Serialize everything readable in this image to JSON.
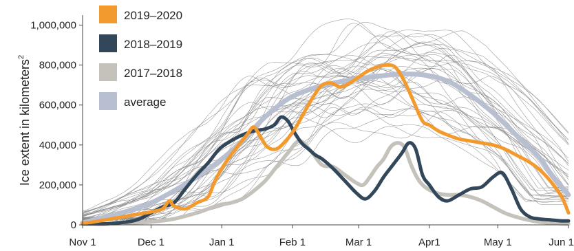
{
  "chart_data": {
    "type": "line",
    "ylabel": "Ice extent in kilometers",
    "ylabel_superscript": "2",
    "ylim": [
      0,
      1050000
    ],
    "xlim": [
      0,
      213
    ],
    "x_tick_labels": [
      {
        "day": 0,
        "label": "Nov 1"
      },
      {
        "day": 30,
        "label": "Dec 1"
      },
      {
        "day": 61,
        "label": "Jan 1"
      },
      {
        "day": 92,
        "label": "Feb 1"
      },
      {
        "day": 121,
        "label": "Mar 1"
      },
      {
        "day": 152,
        "label": "Apr1"
      },
      {
        "day": 182,
        "label": "May 1"
      },
      {
        "day": 213,
        "label": "Jun 1"
      }
    ],
    "y_ticks": [
      0,
      200000,
      400000,
      600000,
      800000,
      1000000
    ],
    "y_tick_labels": [
      "0",
      "200,000",
      "400,000",
      "600,000",
      "800,000",
      "1,000,000"
    ],
    "grid": false,
    "legend_position": "top-left",
    "background_years": {
      "color": "#8a8a8a",
      "count": 40
    },
    "series": [
      {
        "name": "2019–2020",
        "color": "#f39a2e",
        "points": [
          [
            0,
            8000
          ],
          [
            5,
            15000
          ],
          [
            10,
            25000
          ],
          [
            15,
            35000
          ],
          [
            20,
            45000
          ],
          [
            25,
            55000
          ],
          [
            30,
            65000
          ],
          [
            35,
            80000
          ],
          [
            38,
            120000
          ],
          [
            40,
            95000
          ],
          [
            45,
            80000
          ],
          [
            50,
            110000
          ],
          [
            55,
            140000
          ],
          [
            58,
            220000
          ],
          [
            62,
            300000
          ],
          [
            67,
            380000
          ],
          [
            72,
            450000
          ],
          [
            75,
            490000
          ],
          [
            78,
            440000
          ],
          [
            81,
            390000
          ],
          [
            85,
            380000
          ],
          [
            89,
            420000
          ],
          [
            93,
            480000
          ],
          [
            97,
            560000
          ],
          [
            101,
            640000
          ],
          [
            105,
            700000
          ],
          [
            109,
            710000
          ],
          [
            113,
            690000
          ],
          [
            117,
            710000
          ],
          [
            121,
            740000
          ],
          [
            125,
            770000
          ],
          [
            129,
            790000
          ],
          [
            133,
            800000
          ],
          [
            137,
            790000
          ],
          [
            141,
            720000
          ],
          [
            145,
            620000
          ],
          [
            149,
            520000
          ],
          [
            152,
            500000
          ],
          [
            156,
            470000
          ],
          [
            160,
            450000
          ],
          [
            165,
            430000
          ],
          [
            170,
            420000
          ],
          [
            175,
            410000
          ],
          [
            180,
            400000
          ],
          [
            185,
            380000
          ],
          [
            190,
            350000
          ],
          [
            195,
            320000
          ],
          [
            200,
            280000
          ],
          [
            205,
            220000
          ],
          [
            210,
            140000
          ],
          [
            213,
            60000
          ]
        ]
      },
      {
        "name": "2018–2019",
        "color": "#33475b",
        "points": [
          [
            0,
            5000
          ],
          [
            5,
            5000
          ],
          [
            10,
            5000
          ],
          [
            15,
            10000
          ],
          [
            20,
            15000
          ],
          [
            25,
            30000
          ],
          [
            30,
            60000
          ],
          [
            35,
            90000
          ],
          [
            40,
            110000
          ],
          [
            45,
            180000
          ],
          [
            50,
            250000
          ],
          [
            55,
            310000
          ],
          [
            60,
            380000
          ],
          [
            65,
            420000
          ],
          [
            70,
            450000
          ],
          [
            75,
            470000
          ],
          [
            80,
            480000
          ],
          [
            84,
            500000
          ],
          [
            87,
            540000
          ],
          [
            90,
            520000
          ],
          [
            93,
            460000
          ],
          [
            96,
            410000
          ],
          [
            99,
            380000
          ],
          [
            102,
            350000
          ],
          [
            105,
            330000
          ],
          [
            110,
            280000
          ],
          [
            115,
            220000
          ],
          [
            120,
            160000
          ],
          [
            124,
            130000
          ],
          [
            128,
            170000
          ],
          [
            132,
            240000
          ],
          [
            136,
            300000
          ],
          [
            140,
            360000
          ],
          [
            143,
            410000
          ],
          [
            146,
            380000
          ],
          [
            149,
            250000
          ],
          [
            152,
            200000
          ],
          [
            156,
            140000
          ],
          [
            160,
            120000
          ],
          [
            165,
            150000
          ],
          [
            170,
            180000
          ],
          [
            175,
            190000
          ],
          [
            180,
            240000
          ],
          [
            184,
            260000
          ],
          [
            188,
            180000
          ],
          [
            192,
            80000
          ],
          [
            196,
            40000
          ],
          [
            200,
            30000
          ],
          [
            205,
            25000
          ],
          [
            210,
            20000
          ],
          [
            213,
            20000
          ]
        ]
      },
      {
        "name": "2017–2018",
        "color": "#c4c2ba",
        "points": [
          [
            0,
            5000
          ],
          [
            10,
            5000
          ],
          [
            20,
            10000
          ],
          [
            30,
            15000
          ],
          [
            40,
            30000
          ],
          [
            50,
            60000
          ],
          [
            55,
            80000
          ],
          [
            60,
            100000
          ],
          [
            65,
            110000
          ],
          [
            70,
            130000
          ],
          [
            75,
            170000
          ],
          [
            80,
            220000
          ],
          [
            85,
            290000
          ],
          [
            90,
            360000
          ],
          [
            95,
            420000
          ],
          [
            100,
            370000
          ],
          [
            105,
            300000
          ],
          [
            110,
            290000
          ],
          [
            115,
            250000
          ],
          [
            120,
            210000
          ],
          [
            123,
            200000
          ],
          [
            126,
            240000
          ],
          [
            129,
            290000
          ],
          [
            132,
            330000
          ],
          [
            135,
            390000
          ],
          [
            138,
            410000
          ],
          [
            141,
            390000
          ],
          [
            144,
            300000
          ],
          [
            147,
            230000
          ],
          [
            150,
            190000
          ],
          [
            155,
            160000
          ],
          [
            160,
            150000
          ],
          [
            165,
            150000
          ],
          [
            170,
            140000
          ],
          [
            175,
            120000
          ],
          [
            180,
            90000
          ],
          [
            185,
            60000
          ],
          [
            190,
            40000
          ],
          [
            195,
            25000
          ],
          [
            200,
            15000
          ],
          [
            205,
            10000
          ],
          [
            213,
            5000
          ]
        ]
      },
      {
        "name": "average",
        "color": "#b8bfd0",
        "points": [
          [
            0,
            10000
          ],
          [
            10,
            40000
          ],
          [
            20,
            70000
          ],
          [
            30,
            110000
          ],
          [
            40,
            170000
          ],
          [
            50,
            240000
          ],
          [
            60,
            320000
          ],
          [
            70,
            420000
          ],
          [
            80,
            540000
          ],
          [
            90,
            630000
          ],
          [
            100,
            680000
          ],
          [
            110,
            710000
          ],
          [
            120,
            730000
          ],
          [
            130,
            745000
          ],
          [
            140,
            755000
          ],
          [
            150,
            750000
          ],
          [
            160,
            720000
          ],
          [
            170,
            650000
          ],
          [
            180,
            560000
          ],
          [
            190,
            450000
          ],
          [
            200,
            340000
          ],
          [
            205,
            260000
          ],
          [
            210,
            190000
          ],
          [
            213,
            150000
          ]
        ]
      }
    ]
  }
}
